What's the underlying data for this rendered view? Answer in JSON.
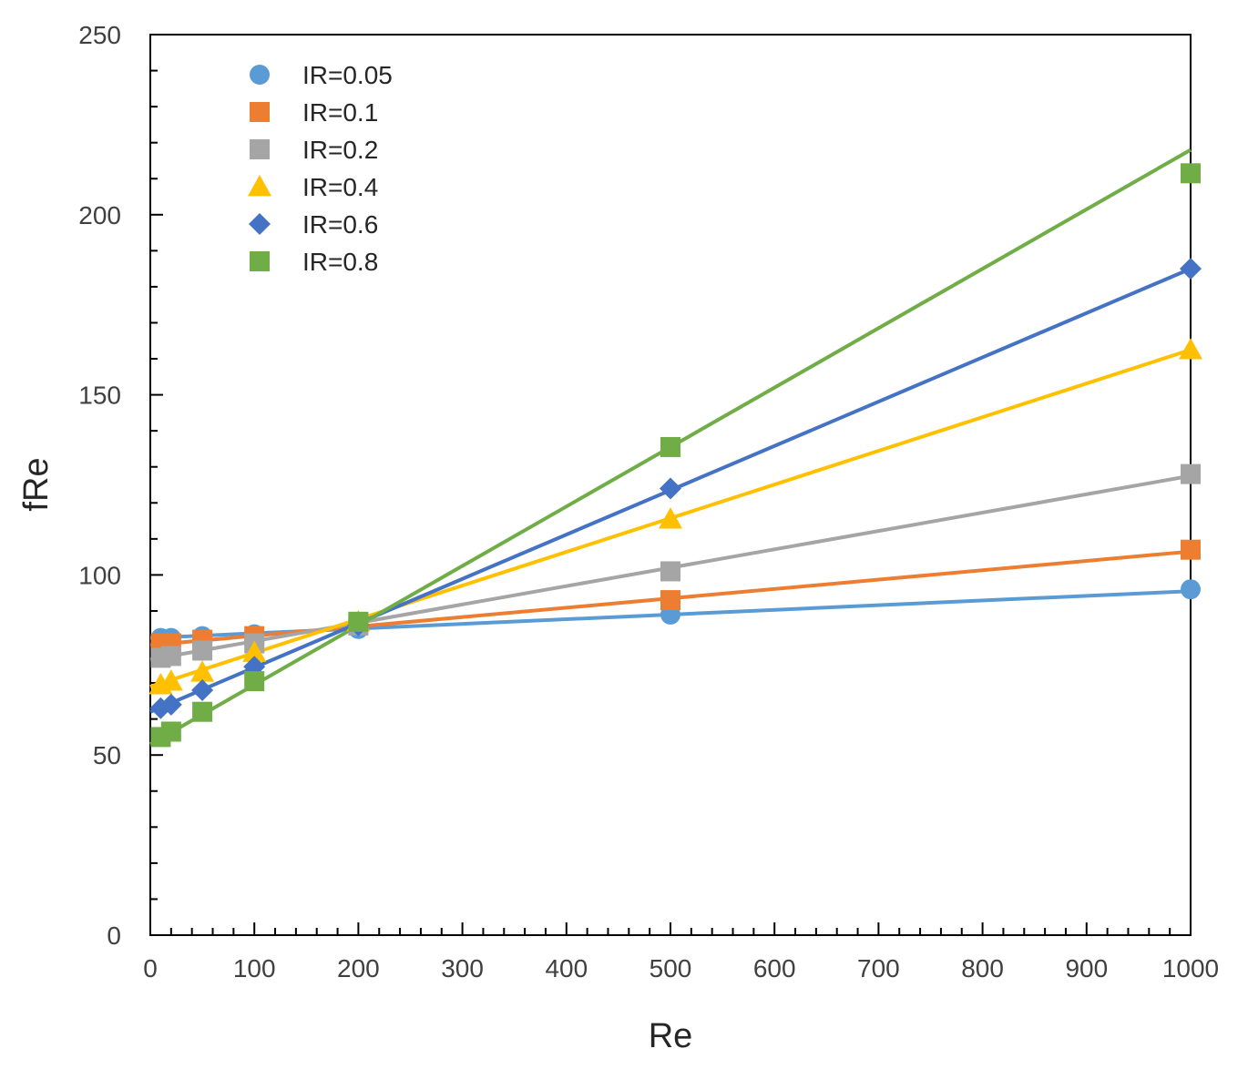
{
  "chart_data": {
    "type": "line",
    "title": "",
    "xlabel": "Re",
    "ylabel": "fRe",
    "xlim": [
      0,
      1000
    ],
    "ylim": [
      0,
      250
    ],
    "xticks": [
      0,
      100,
      200,
      300,
      400,
      500,
      600,
      700,
      800,
      900,
      1000
    ],
    "yticks": [
      0,
      50,
      100,
      150,
      200,
      250
    ],
    "grid": false,
    "legend_position": "top-left",
    "series": [
      {
        "name": "IR=0.05",
        "marker": "circle",
        "color": "#5B9BD5",
        "points": [
          [
            10,
            82.5
          ],
          [
            20,
            82.5
          ],
          [
            50,
            83
          ],
          [
            100,
            83.5
          ],
          [
            200,
            85
          ],
          [
            500,
            89
          ],
          [
            1000,
            96
          ]
        ],
        "fit": [
          [
            0,
            82.5
          ],
          [
            1000,
            95.5
          ]
        ]
      },
      {
        "name": "IR=0.1",
        "marker": "square",
        "color": "#ED7D31",
        "points": [
          [
            10,
            81
          ],
          [
            20,
            81
          ],
          [
            50,
            82
          ],
          [
            100,
            83
          ],
          [
            200,
            86
          ],
          [
            500,
            93
          ],
          [
            1000,
            107
          ]
        ],
        "fit": [
          [
            0,
            80.5
          ],
          [
            1000,
            106.5
          ]
        ]
      },
      {
        "name": "IR=0.2",
        "marker": "square",
        "color": "#A5A5A5",
        "points": [
          [
            10,
            77
          ],
          [
            20,
            77.5
          ],
          [
            50,
            79
          ],
          [
            100,
            81
          ],
          [
            200,
            86
          ],
          [
            500,
            101
          ],
          [
            1000,
            128
          ]
        ],
        "fit": [
          [
            0,
            76.5
          ],
          [
            1000,
            127.5
          ]
        ]
      },
      {
        "name": "IR=0.4",
        "marker": "triangle",
        "color": "#FFC000",
        "points": [
          [
            10,
            69.5
          ],
          [
            20,
            70.5
          ],
          [
            50,
            73
          ],
          [
            100,
            78.5
          ],
          [
            200,
            87
          ],
          [
            500,
            115.5
          ],
          [
            1000,
            162.5
          ]
        ],
        "fit": [
          [
            0,
            69
          ],
          [
            1000,
            162.5
          ]
        ]
      },
      {
        "name": "IR=0.6",
        "marker": "diamond",
        "color": "#4472C4",
        "points": [
          [
            10,
            63
          ],
          [
            20,
            64
          ],
          [
            50,
            68
          ],
          [
            100,
            74.5
          ],
          [
            200,
            86
          ],
          [
            500,
            124
          ],
          [
            1000,
            185
          ]
        ],
        "fit": [
          [
            0,
            62
          ],
          [
            1000,
            185
          ]
        ]
      },
      {
        "name": "IR=0.8",
        "marker": "square",
        "color": "#70AD47",
        "points": [
          [
            10,
            55
          ],
          [
            20,
            56.5
          ],
          [
            50,
            62
          ],
          [
            100,
            70.5
          ],
          [
            200,
            87
          ],
          [
            500,
            135.5
          ],
          [
            1000,
            211.5
          ]
        ],
        "fit": [
          [
            0,
            53
          ],
          [
            1000,
            218
          ]
        ]
      }
    ]
  }
}
